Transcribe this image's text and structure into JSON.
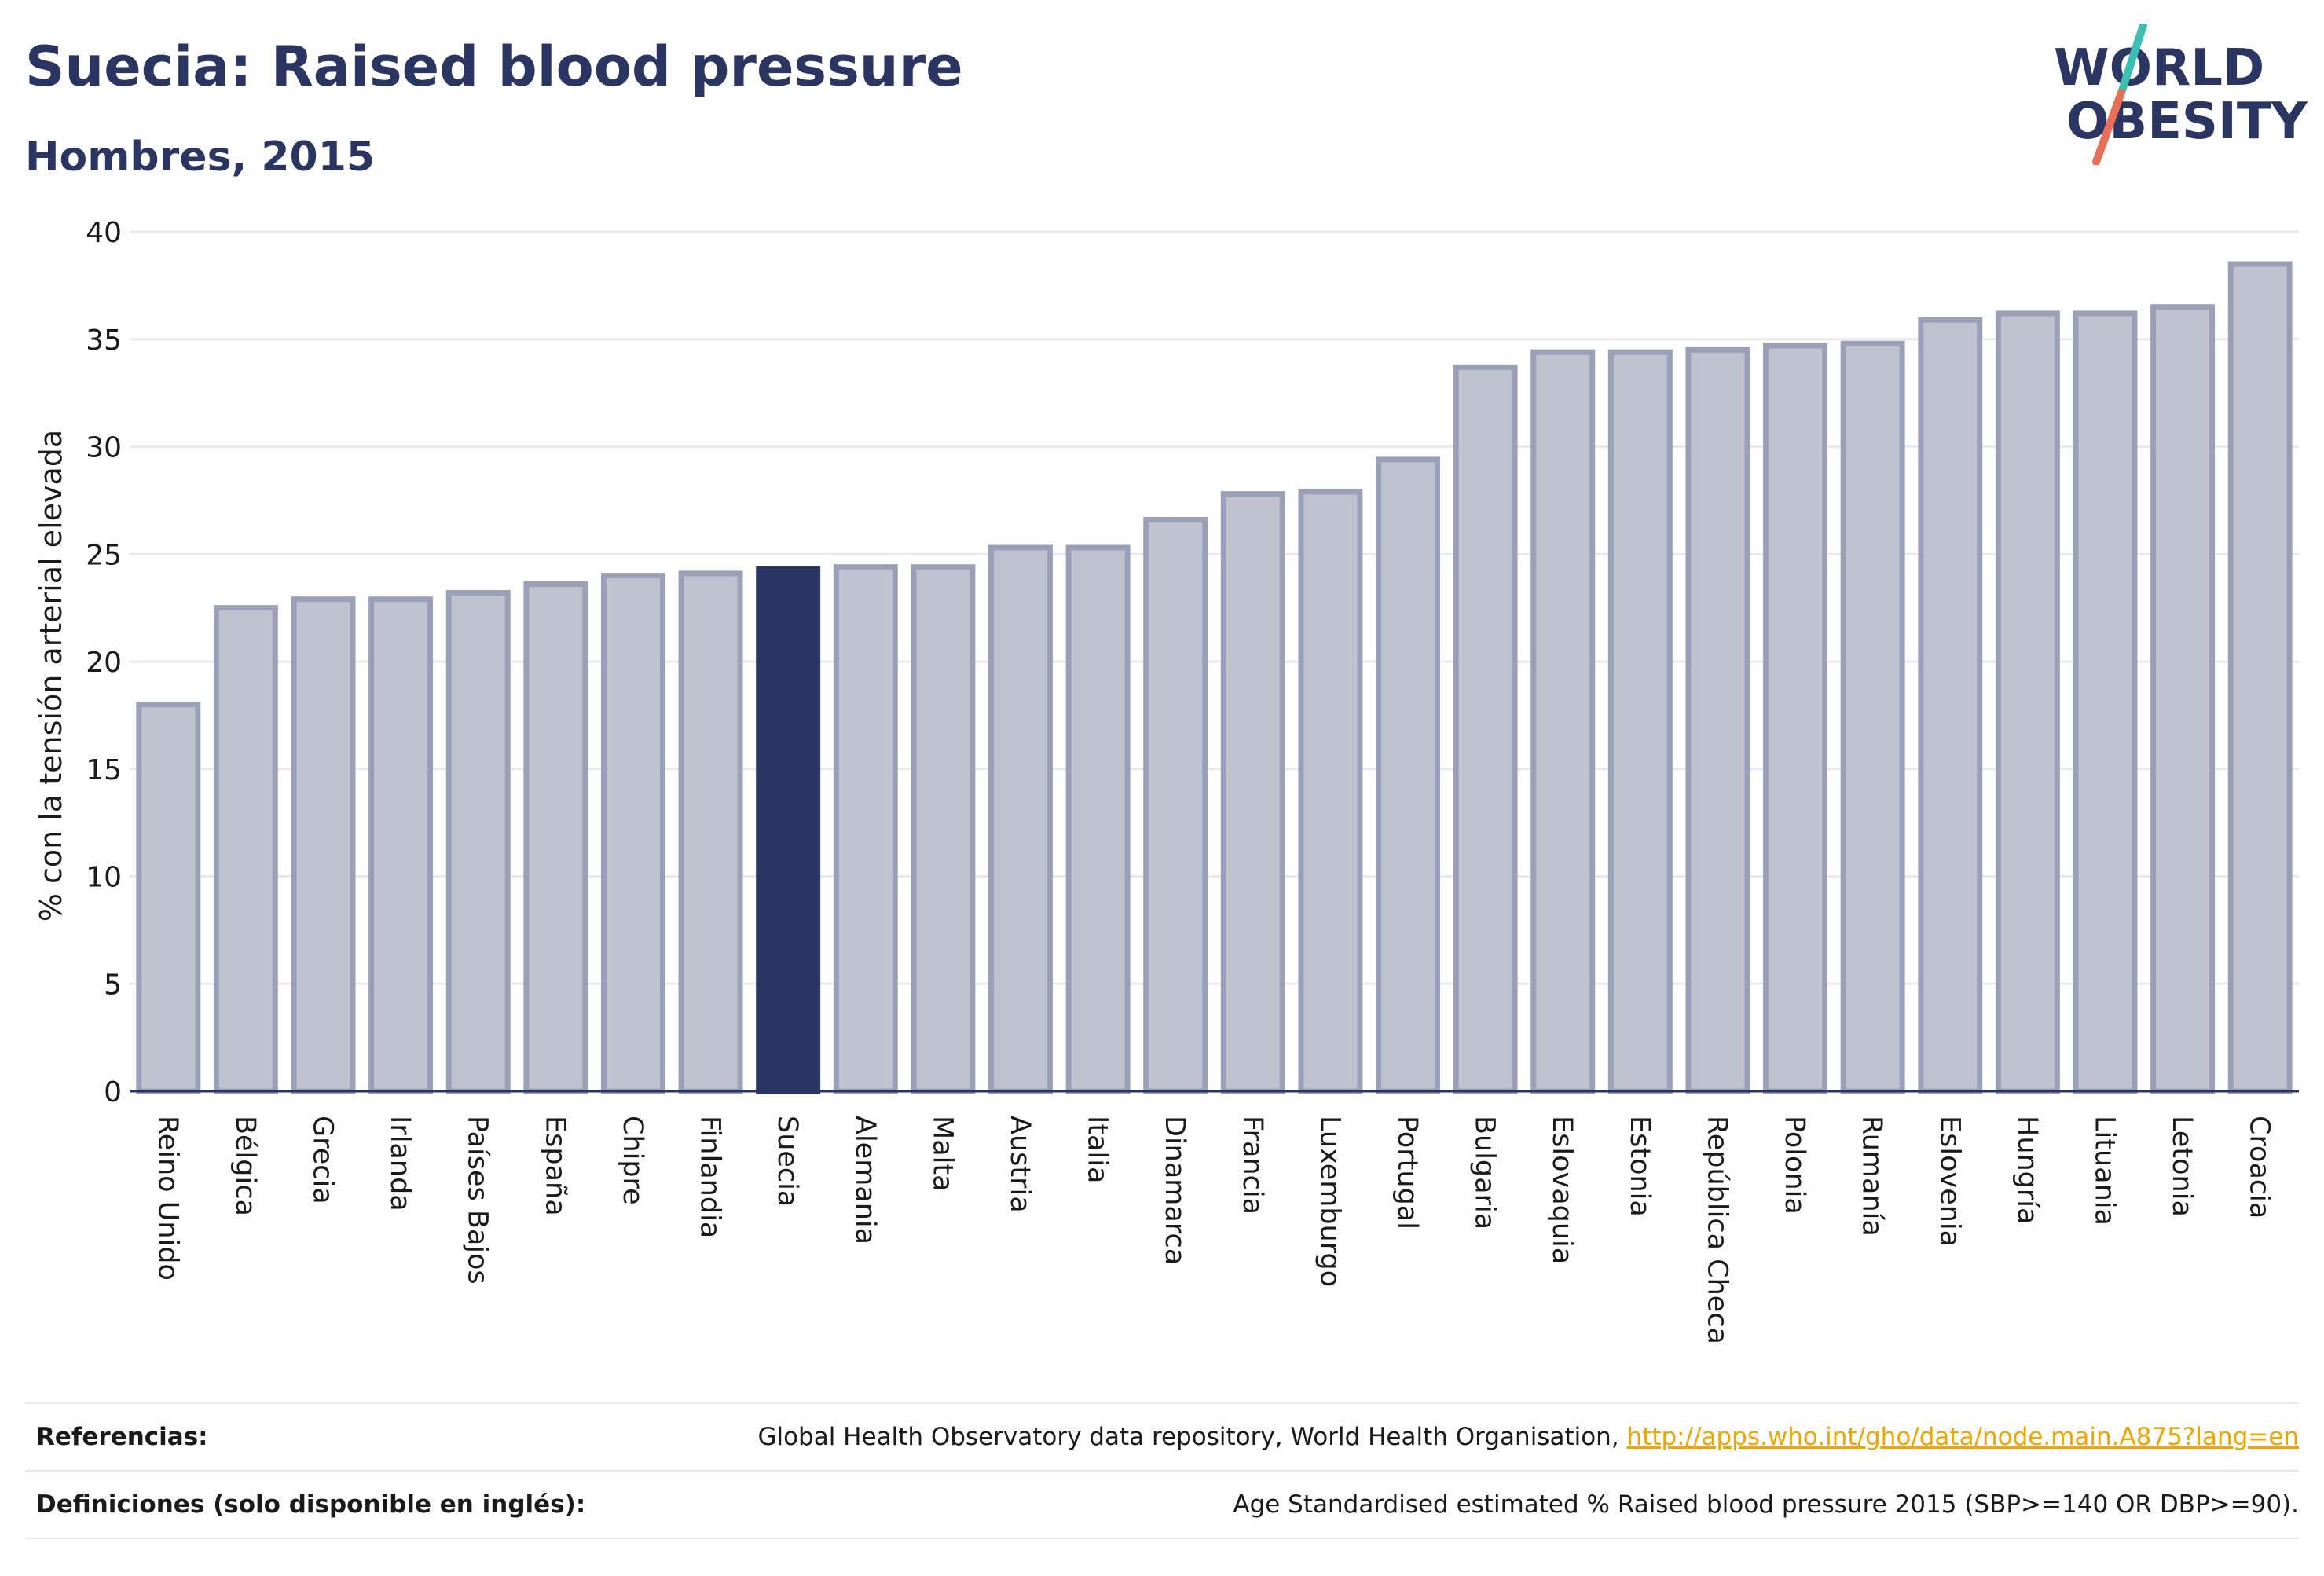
{
  "header": {
    "title": "Suecia: Raised blood pressure",
    "subtitle": "Hombres, 2015"
  },
  "logo": {
    "line1": "WORLD",
    "line2": "OBESITY"
  },
  "colors": {
    "highlight": "#2b3561",
    "bar_fill": "#bfc2cf",
    "bar_stroke": "#9aa0b8",
    "logo_slash_top": "#3bbfb0",
    "logo_slash_bottom": "#e8705a",
    "link": "#e9a800"
  },
  "chart_data": {
    "type": "bar",
    "title": "Suecia: Raised blood pressure",
    "subtitle": "Hombres, 2015",
    "xlabel": "",
    "ylabel": "% con la tensión arterial elevada",
    "ylim": [
      0,
      40
    ],
    "yticks": [
      0,
      5,
      10,
      15,
      20,
      25,
      30,
      35,
      40
    ],
    "grid": true,
    "highlight": "Suecia",
    "categories": [
      "Reino Unido",
      "Bélgica",
      "Grecia",
      "Irlanda",
      "Países Bajos",
      "España",
      "Chipre",
      "Finlandia",
      "Suecia",
      "Alemania",
      "Malta",
      "Austria",
      "Italia",
      "Dinamarca",
      "Francia",
      "Luxemburgo",
      "Portugal",
      "Bulgaria",
      "Eslovaquia",
      "Estonia",
      "República Checa",
      "Polonia",
      "Rumanía",
      "Eslovenia",
      "Hungría",
      "Lituania",
      "Letonia",
      "Croacia"
    ],
    "values": [
      18.0,
      22.5,
      22.9,
      22.9,
      23.2,
      23.6,
      24.0,
      24.1,
      24.3,
      24.4,
      24.4,
      25.3,
      25.3,
      26.6,
      27.8,
      27.9,
      29.4,
      33.7,
      34.4,
      34.4,
      34.5,
      34.7,
      34.8,
      35.9,
      36.2,
      36.2,
      36.5,
      38.5
    ]
  },
  "footer": {
    "references_label": "Referencias:",
    "references_text": "Global Health Observatory data repository, World Health Organisation, ",
    "references_link": "http://apps.who.int/gho/data/node.main.A875?lang=en",
    "definitions_label": "Definiciones (solo disponible en inglés):",
    "definitions_text": "Age Standardised estimated % Raised blood pressure 2015 (SBP>=140 OR DBP>=90)."
  }
}
